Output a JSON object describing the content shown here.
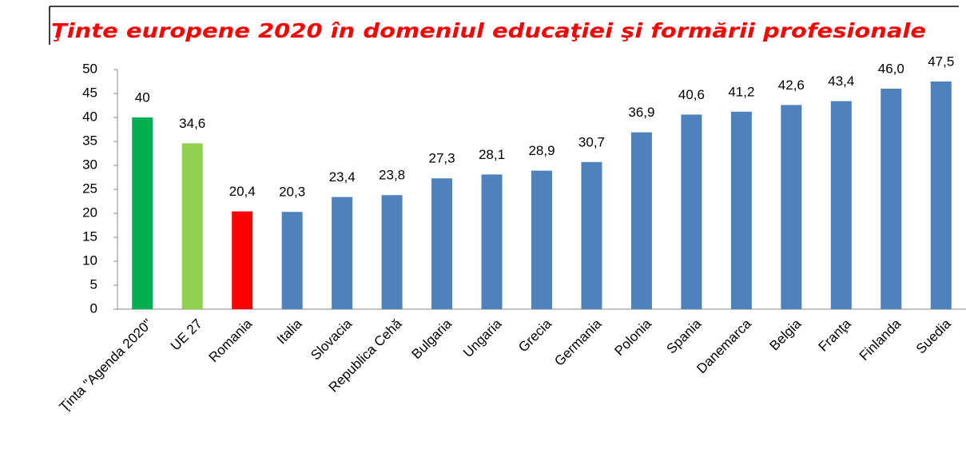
{
  "chart_data": {
    "type": "bar",
    "title": "Ţinte europene 2020 în domeniul educaţiei şi formării profesionale",
    "categories": [
      "Ţinta \"Agenda 2020\"",
      "UE 27",
      "Romania",
      "Italia",
      "Slovacia",
      "Republica Cehă",
      "Bulgaria",
      "Ungaria",
      "Grecia",
      "Germania",
      "Polonia",
      "Spania",
      "Danemarca",
      "Belgia",
      "Franţa",
      "Finlanda",
      "Suedia"
    ],
    "values": [
      40,
      34.6,
      20.4,
      20.3,
      23.4,
      23.8,
      27.3,
      28.1,
      28.9,
      30.7,
      36.9,
      40.6,
      41.2,
      42.6,
      43.4,
      46.0,
      47.5
    ],
    "value_labels": [
      "40",
      "34,6",
      "20,4",
      "20,3",
      "23,4",
      "23,8",
      "27,3",
      "28,1",
      "28,9",
      "30,7",
      "36,9",
      "40,6",
      "41,2",
      "42,6",
      "43,4",
      "46,0",
      "47,5"
    ],
    "colors": [
      "#00b050",
      "#92d050",
      "#ff0000",
      "#4f81bd",
      "#4f81bd",
      "#4f81bd",
      "#4f81bd",
      "#4f81bd",
      "#4f81bd",
      "#4f81bd",
      "#4f81bd",
      "#4f81bd",
      "#4f81bd",
      "#4f81bd",
      "#4f81bd",
      "#4f81bd",
      "#4f81bd"
    ],
    "ylim": [
      0,
      50
    ],
    "yticks": [
      0,
      5,
      10,
      15,
      20,
      25,
      30,
      35,
      40,
      45,
      50
    ],
    "grid": false
  }
}
